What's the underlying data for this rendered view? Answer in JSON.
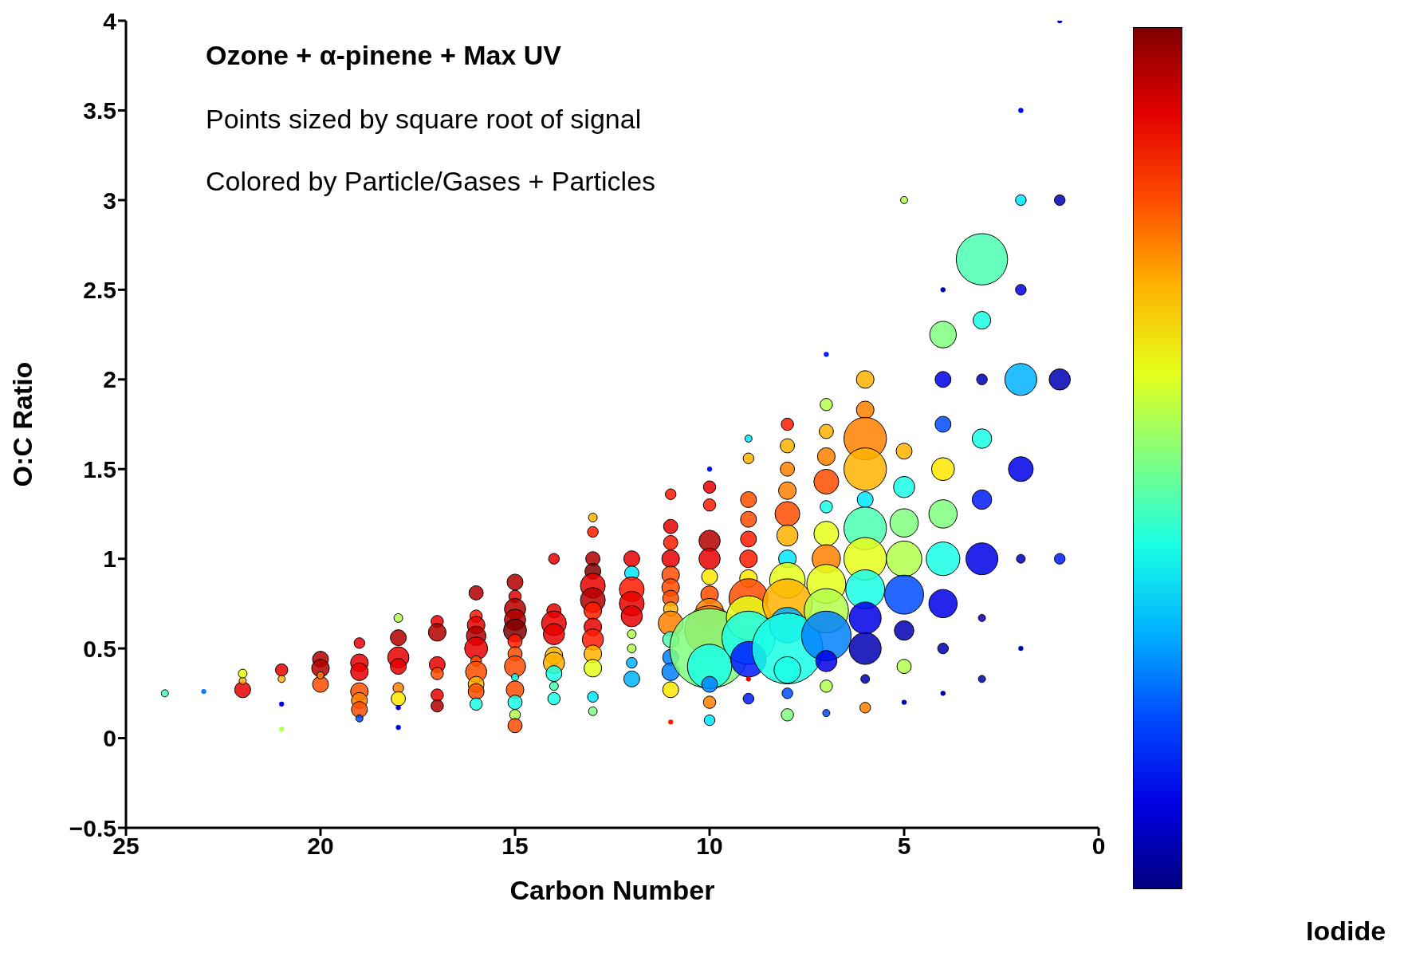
{
  "chart_data": {
    "type": "bubble",
    "title": "Ozone + α-pinene + Max UV",
    "annotations": [
      "Points sized by square root of signal",
      "Colored by Particle/Gases + Particles"
    ],
    "xlabel": "Carbon Number",
    "ylabel": "O:C Ratio",
    "clabel": "Iodide",
    "xlim": [
      25,
      0
    ],
    "xticks": [
      25,
      20,
      15,
      10,
      5,
      0
    ],
    "ylim": [
      -0.5,
      4
    ],
    "yticks": [
      -0.5,
      0,
      0.5,
      1,
      1.5,
      2,
      2.5,
      3,
      3.5,
      4
    ],
    "marker": "circle",
    "series": [
      {
        "x": [
          24
        ],
        "values": [
          0.25
        ],
        "sizes": [
          0.008
        ],
        "colors": [
          "#4cffb3"
        ]
      },
      {
        "x": [
          23
        ],
        "values": [
          0.26
        ],
        "sizes": [
          0.004
        ],
        "colors": [
          "#0080ff"
        ]
      },
      {
        "x": [
          22,
          22,
          22
        ],
        "values": [
          0.27,
          0.32,
          0.36
        ],
        "sizes": [
          0.04,
          0.008,
          0.012
        ],
        "colors": [
          "#e60000",
          "#ffb300",
          "#e6ff1a"
        ]
      },
      {
        "x": [
          21,
          21,
          21,
          21
        ],
        "values": [
          0.38,
          0.33,
          0.19,
          0.05
        ],
        "sizes": [
          0.024,
          0.008,
          0.004,
          0.004
        ],
        "colors": [
          "#e60000",
          "#ffb300",
          "#0000e6",
          "#b3ff4c"
        ]
      },
      {
        "x": [
          20,
          20,
          20,
          20
        ],
        "values": [
          0.44,
          0.39,
          0.3,
          0.35
        ],
        "sizes": [
          0.04,
          0.049,
          0.04,
          0.008
        ],
        "colors": [
          "#b30000",
          "#b30000",
          "#ff4c00",
          "#ff8000"
        ]
      },
      {
        "x": [
          19,
          19,
          19,
          19,
          19,
          19,
          19
        ],
        "values": [
          0.53,
          0.42,
          0.37,
          0.26,
          0.21,
          0.16,
          0.11
        ],
        "sizes": [
          0.018,
          0.049,
          0.049,
          0.049,
          0.04,
          0.04,
          0.008
        ],
        "colors": [
          "#e60000",
          "#e60000",
          "#e60000",
          "#ff4c00",
          "#ff8000",
          "#ff4c00",
          "#004cff"
        ]
      },
      {
        "x": [
          18,
          18,
          18,
          18,
          18,
          18,
          18,
          18
        ],
        "values": [
          0.67,
          0.56,
          0.45,
          0.4,
          0.28,
          0.22,
          0.17,
          0.06
        ],
        "sizes": [
          0.012,
          0.04,
          0.071,
          0.04,
          0.018,
          0.032,
          0.004,
          0.004
        ],
        "colors": [
          "#b3ff4c",
          "#b30000",
          "#e60000",
          "#e60000",
          "#ff8000",
          "#ffe600",
          "#0000e6",
          "#0000e6"
        ]
      },
      {
        "x": [
          17,
          17,
          17,
          17,
          17,
          17
        ],
        "values": [
          0.65,
          0.59,
          0.41,
          0.36,
          0.24,
          0.18
        ],
        "sizes": [
          0.024,
          0.049,
          0.04,
          0.024,
          0.024,
          0.024
        ],
        "colors": [
          "#e60000",
          "#b30000",
          "#e60000",
          "#ff4c00",
          "#e60000",
          "#b30000"
        ]
      },
      {
        "x": [
          16,
          16,
          16,
          16,
          16,
          16,
          16,
          16,
          16,
          16
        ],
        "values": [
          0.81,
          0.68,
          0.63,
          0.57,
          0.5,
          0.43,
          0.37,
          0.3,
          0.26,
          0.19
        ],
        "sizes": [
          0.032,
          0.024,
          0.049,
          0.06,
          0.083,
          0.018,
          0.071,
          0.04,
          0.04,
          0.024
        ],
        "colors": [
          "#b30000",
          "#ff1a00",
          "#e60000",
          "#b30000",
          "#e60000",
          "#ff4c00",
          "#ff4c00",
          "#ffb300",
          "#ff4c00",
          "#1affe6"
        ]
      },
      {
        "x": [
          15,
          15,
          15,
          15,
          15,
          15,
          15,
          15,
          15,
          15,
          15,
          15,
          15
        ],
        "values": [
          0.87,
          0.79,
          0.72,
          0.66,
          0.6,
          0.54,
          0.47,
          0.4,
          0.34,
          0.27,
          0.2,
          0.13,
          0.07
        ],
        "sizes": [
          0.04,
          0.024,
          0.071,
          0.071,
          0.083,
          0.032,
          0.032,
          0.071,
          0.008,
          0.049,
          0.032,
          0.018,
          0.032
        ],
        "colors": [
          "#b30000",
          "#e60000",
          "#b30000",
          "#b30000",
          "#800000",
          "#ff1a00",
          "#ff4c00",
          "#ff4c00",
          "#1affe6",
          "#ff4c00",
          "#1affe6",
          "#b3ff4c",
          "#ff4c00"
        ]
      },
      {
        "x": [
          14,
          14,
          14,
          14,
          14,
          14,
          14,
          14,
          14
        ],
        "values": [
          1,
          0.71,
          0.64,
          0.58,
          0.46,
          0.42,
          0.36,
          0.29,
          0.22
        ],
        "sizes": [
          0.018,
          0.032,
          0.097,
          0.071,
          0.049,
          0.071,
          0.04,
          0.012,
          0.024
        ],
        "colors": [
          "#e60000",
          "#e60000",
          "#e60000",
          "#e60000",
          "#ffb300",
          "#ffb300",
          "#1affe6",
          "#4cffb3",
          "#1affe6"
        ]
      },
      {
        "x": [
          13,
          13,
          13,
          13,
          13,
          13,
          13,
          13,
          13,
          13,
          13,
          13,
          13
        ],
        "values": [
          1.23,
          1.15,
          1,
          0.93,
          0.85,
          0.77,
          0.71,
          0.62,
          0.55,
          0.47,
          0.39,
          0.23,
          0.15
        ],
        "sizes": [
          0.012,
          0.018,
          0.032,
          0.04,
          0.097,
          0.097,
          0.049,
          0.049,
          0.071,
          0.049,
          0.049,
          0.018,
          0.012
        ],
        "colors": [
          "#ffb300",
          "#ff1a00",
          "#b30000",
          "#800000",
          "#e60000",
          "#b30000",
          "#ff1a00",
          "#e60000",
          "#ff1a00",
          "#ffb300",
          "#e6ff1a",
          "#00e6ff",
          "#80ff80"
        ]
      },
      {
        "x": [
          12,
          12,
          12,
          12,
          12,
          12,
          12,
          12,
          12
        ],
        "values": [
          1,
          0.92,
          0.83,
          0.75,
          0.68,
          0.58,
          0.5,
          0.42,
          0.33
        ],
        "sizes": [
          0.04,
          0.032,
          0.097,
          0.097,
          0.071,
          0.012,
          0.012,
          0.018,
          0.04
        ],
        "colors": [
          "#e60000",
          "#00e6ff",
          "#ff1a00",
          "#e60000",
          "#e60000",
          "#b3ff4c",
          "#b3ff4c",
          "#00b3ff",
          "#00b3ff"
        ]
      },
      {
        "x": [
          11,
          11,
          11,
          11,
          11,
          11,
          11,
          11,
          11,
          11,
          11,
          11,
          11,
          11
        ],
        "values": [
          1.36,
          1.18,
          1.09,
          1,
          0.91,
          0.84,
          0.78,
          0.72,
          0.64,
          0.55,
          0.45,
          0.37,
          0.27,
          0.09
        ],
        "sizes": [
          0.018,
          0.032,
          0.032,
          0.049,
          0.049,
          0.049,
          0.04,
          0.032,
          0.097,
          0.04,
          0.04,
          0.049,
          0.04,
          0.004
        ],
        "colors": [
          "#ff1a00",
          "#e60000",
          "#ff1a00",
          "#e60000",
          "#ff4c00",
          "#ff4c00",
          "#ff4c00",
          "#ffb300",
          "#ff8000",
          "#4cffb3",
          "#0080ff",
          "#0080ff",
          "#ffe600",
          "#ff1a00"
        ]
      },
      {
        "x": [
          10,
          10,
          10,
          10,
          10,
          10,
          10,
          10,
          10,
          10,
          10,
          10,
          10,
          10
        ],
        "values": [
          1.5,
          1.4,
          1.3,
          1.1,
          1,
          0.9,
          0.8,
          0.7,
          0.6,
          0.5,
          0.4,
          0.3,
          0.2,
          0.1
        ],
        "sizes": [
          0.004,
          0.024,
          0.024,
          0.071,
          0.071,
          0.04,
          0.049,
          0.126,
          0.387,
          1,
          0.309,
          0.04,
          0.024,
          0.018
        ],
        "colors": [
          "#001aff",
          "#e60000",
          "#ff1a00",
          "#b30000",
          "#e60000",
          "#ffe600",
          "#ff4c00",
          "#ff8000",
          "#ff8000",
          "#80ff80",
          "#1affe6",
          "#0080ff",
          "#ff8000",
          "#00e6ff"
        ]
      },
      {
        "x": [
          9,
          9,
          9,
          9,
          9,
          9,
          9,
          9,
          9,
          9,
          9,
          9,
          9
        ],
        "values": [
          1.67,
          1.56,
          1.33,
          1.22,
          1.11,
          1,
          0.89,
          0.78,
          0.67,
          0.56,
          0.44,
          0.33,
          0.22
        ],
        "sizes": [
          0.008,
          0.018,
          0.04,
          0.04,
          0.04,
          0.049,
          0.049,
          0.239,
          0.309,
          0.444,
          0.198,
          0.004,
          0.018
        ],
        "colors": [
          "#00e6ff",
          "#ffb300",
          "#ff4c00",
          "#ff4c00",
          "#ff1a00",
          "#ff1a00",
          "#ffe600",
          "#ff4c00",
          "#e6ff1a",
          "#1affe6",
          "#001aff",
          "#e60000",
          "#001aff"
        ]
      },
      {
        "x": [
          8,
          8,
          8,
          8,
          8,
          8,
          8,
          8,
          8,
          8,
          8,
          8,
          8,
          8
        ],
        "values": [
          1.75,
          1.63,
          1.5,
          1.38,
          1.25,
          1.13,
          1,
          0.88,
          0.75,
          0.63,
          0.5,
          0.38,
          0.25,
          0.13
        ],
        "sizes": [
          0.024,
          0.032,
          0.032,
          0.049,
          0.097,
          0.071,
          0.049,
          0.198,
          0.387,
          0.198,
          0.79,
          0.111,
          0.018,
          0.024
        ],
        "colors": [
          "#ff1a00",
          "#ffb300",
          "#ff8000",
          "#ff8000",
          "#ff4c00",
          "#ffb300",
          "#00e6ff",
          "#e6ff1a",
          "#ffb300",
          "#00b3ff",
          "#1affe6",
          "#1affe6",
          "#004cff",
          "#80ff80"
        ]
      },
      {
        "x": [
          7,
          7,
          7,
          7,
          7,
          7,
          7,
          7,
          7,
          7,
          7,
          7,
          7,
          7
        ],
        "values": [
          2.14,
          1.86,
          1.71,
          1.57,
          1.43,
          1.29,
          1.14,
          1,
          0.86,
          0.71,
          0.57,
          0.43,
          0.29,
          0.14
        ],
        "sizes": [
          0.004,
          0.024,
          0.032,
          0.049,
          0.097,
          0.024,
          0.097,
          0.126,
          0.239,
          0.309,
          0.387,
          0.071,
          0.024,
          0.008
        ],
        "colors": [
          "#001aff",
          "#b3ff4c",
          "#ffb300",
          "#ff8000",
          "#ff4c00",
          "#1affe6",
          "#e6ff1a",
          "#ff8000",
          "#e6ff1a",
          "#b3ff4c",
          "#0080ff",
          "#0000e6",
          "#b3ff4c",
          "#004cff"
        ]
      },
      {
        "x": [
          6,
          6,
          6,
          6,
          6,
          6,
          6,
          6,
          6,
          6,
          6,
          6
        ],
        "values": [
          2,
          1.83,
          1.67,
          1.5,
          1.33,
          1.17,
          1,
          0.83,
          0.67,
          0.5,
          0.33,
          0.17
        ],
        "sizes": [
          0.049,
          0.049,
          0.284,
          0.284,
          0.04,
          0.284,
          0.284,
          0.239,
          0.16,
          0.16,
          0.012,
          0.018
        ],
        "colors": [
          "#ffb300",
          "#ff8000",
          "#ff8000",
          "#ffb300",
          "#00e6ff",
          "#4cffb3",
          "#e6ff1a",
          "#1affe6",
          "#0000e6",
          "#0000b3",
          "#0000b3",
          "#ff8000"
        ]
      },
      {
        "x": [
          5,
          5,
          5,
          5,
          5,
          5,
          5,
          5,
          5
        ],
        "values": [
          3,
          1.6,
          1.4,
          1.2,
          1,
          0.8,
          0.6,
          0.4,
          0.2
        ],
        "sizes": [
          0.008,
          0.04,
          0.071,
          0.126,
          0.198,
          0.239,
          0.06,
          0.032,
          0.004
        ],
        "colors": [
          "#b3ff4c",
          "#ffb300",
          "#1affe6",
          "#80ff80",
          "#b3ff4c",
          "#004cff",
          "#0000b3",
          "#b3ff4c",
          "#0000b3"
        ]
      },
      {
        "x": [
          4,
          4,
          4,
          4,
          4,
          4,
          4,
          4,
          4,
          4
        ],
        "values": [
          2.5,
          2.25,
          2,
          1.75,
          1.5,
          1.25,
          1,
          0.75,
          0.5,
          0.25
        ],
        "sizes": [
          0.004,
          0.111,
          0.04,
          0.04,
          0.083,
          0.126,
          0.178,
          0.126,
          0.018,
          0.004
        ],
        "colors": [
          "#0000b3",
          "#80ff80",
          "#0000e6",
          "#004cff",
          "#ffe600",
          "#80ff80",
          "#1affe6",
          "#0000e6",
          "#0000b3",
          "#0000b3"
        ]
      },
      {
        "x": [
          3,
          3,
          3,
          3,
          3,
          3,
          3,
          3
        ],
        "values": [
          2.67,
          2.33,
          2,
          1.67,
          1.33,
          1,
          0.67,
          0.33
        ],
        "sizes": [
          0.415,
          0.049,
          0.018,
          0.06,
          0.06,
          0.16,
          0.008,
          0.008
        ],
        "colors": [
          "#4cffb3",
          "#1affe6",
          "#0000b3",
          "#1affe6",
          "#001aff",
          "#0000e6",
          "#0000b3",
          "#0000b3"
        ]
      },
      {
        "x": [
          2,
          2,
          2,
          2,
          2,
          2,
          2
        ],
        "values": [
          3.5,
          3,
          2.5,
          2,
          1.5,
          1,
          0.5
        ],
        "sizes": [
          0.004,
          0.018,
          0.018,
          0.16,
          0.097,
          0.012,
          0.004
        ],
        "colors": [
          "#0000e6",
          "#00e6ff",
          "#0000e6",
          "#00b3ff",
          "#0000e6",
          "#0000b3",
          "#0000b3"
        ]
      },
      {
        "x": [
          1,
          1,
          1,
          1
        ],
        "values": [
          4,
          3,
          2,
          1
        ],
        "sizes": [
          0.004,
          0.018,
          0.071,
          0.018
        ],
        "colors": [
          "#0000b3",
          "#0000b3",
          "#0000b3",
          "#001aff"
        ]
      }
    ]
  }
}
